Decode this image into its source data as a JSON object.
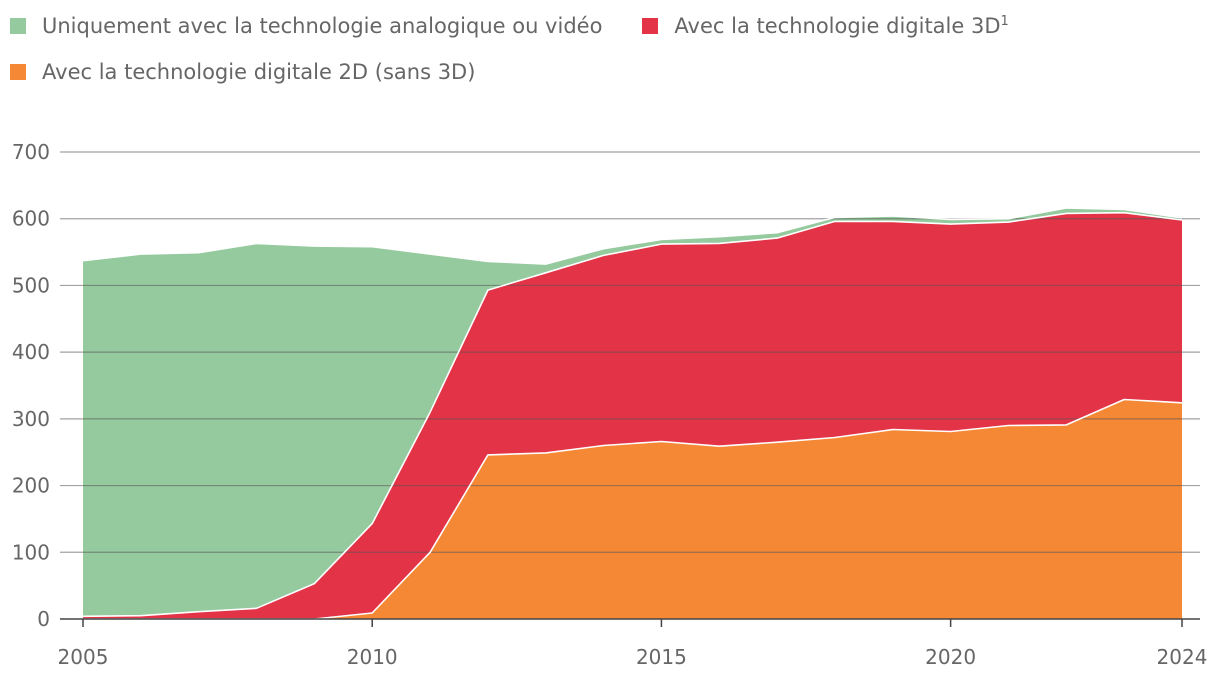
{
  "legend": {
    "analog": "Uniquement avec la technologie analogique ou vidéo",
    "d3": "Avec la technologie digitale 3D",
    "d3_sup": "1",
    "d2": "Avec la technologie digitale 2D (sans 3D)"
  },
  "colors": {
    "analog": "#95c99e",
    "d3": "#e23347",
    "d2": "#f58835",
    "grid": "#555555",
    "text": "#666666"
  },
  "chart_data": {
    "type": "area",
    "stacked": true,
    "x": [
      2005,
      2006,
      2007,
      2008,
      2009,
      2010,
      2011,
      2012,
      2013,
      2014,
      2015,
      2016,
      2017,
      2018,
      2019,
      2020,
      2021,
      2022,
      2023,
      2024
    ],
    "series": [
      {
        "name": "Avec la technologie digitale 2D (sans 3D)",
        "values": [
          0,
          0,
          0,
          0,
          0,
          9,
          100,
          246,
          249,
          260,
          266,
          259,
          265,
          272,
          284,
          281,
          290,
          291,
          329,
          324
        ]
      },
      {
        "name": "Avec la technologie digitale 3D",
        "values": [
          4,
          5,
          11,
          16,
          53,
          134,
          210,
          247,
          270,
          285,
          296,
          304,
          306,
          324,
          312,
          311,
          305,
          317,
          280,
          274
        ]
      },
      {
        "name": "Uniquement avec la technologie analogique ou vidéo",
        "values": [
          533,
          542,
          538,
          547,
          506,
          415,
          237,
          43,
          13,
          10,
          7,
          10,
          8,
          6,
          8,
          7,
          5,
          8,
          5,
          3
        ]
      }
    ],
    "xticks": [
      "2005",
      "2010",
      "2015",
      "2020",
      "2024"
    ],
    "yticks": [
      "0",
      "100",
      "200",
      "300",
      "400",
      "500",
      "600",
      "700"
    ],
    "ylim": [
      0,
      700
    ],
    "xlim": [
      2005,
      2024
    ],
    "grid": true,
    "legend_position": "top-left"
  }
}
